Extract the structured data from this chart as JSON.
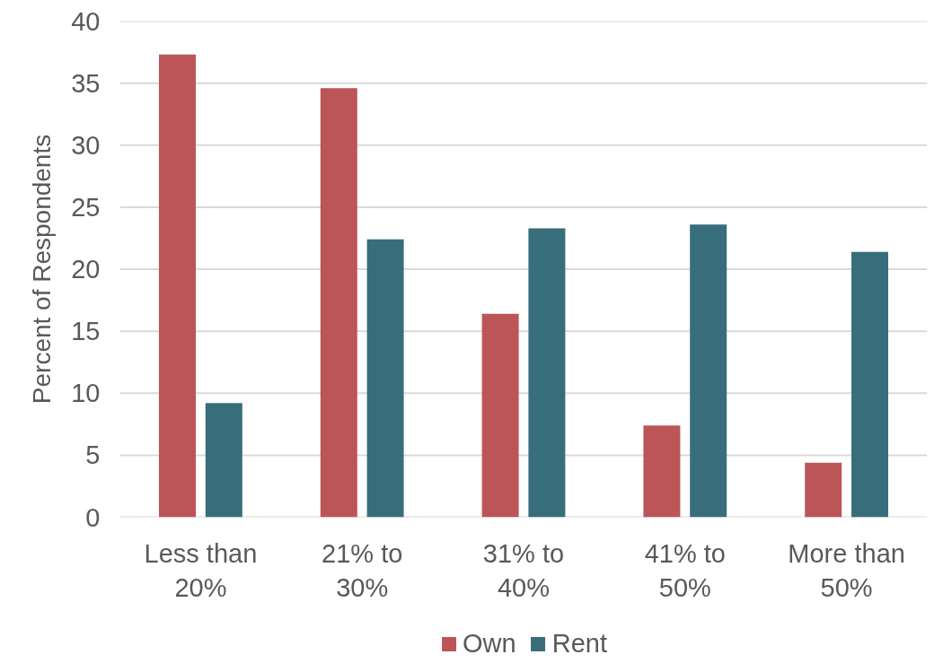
{
  "chart_data": {
    "type": "bar",
    "ylabel": "Percent of Respondents",
    "categories": [
      "Less than 20%",
      "21% to 30%",
      "31% to 40%",
      "41% to 50%",
      "More than 50%"
    ],
    "series": [
      {
        "name": "Own",
        "color": "#bc5558",
        "values": [
          37.3,
          34.6,
          16.4,
          7.4,
          4.4
        ]
      },
      {
        "name": "Rent",
        "color": "#386e7c",
        "values": [
          9.2,
          22.4,
          23.3,
          23.6,
          21.4
        ]
      }
    ],
    "ylim": [
      0,
      40
    ],
    "yticks": [
      0,
      5,
      10,
      15,
      20,
      25,
      30,
      35,
      40
    ],
    "grid": "y",
    "legend": "bottom"
  }
}
